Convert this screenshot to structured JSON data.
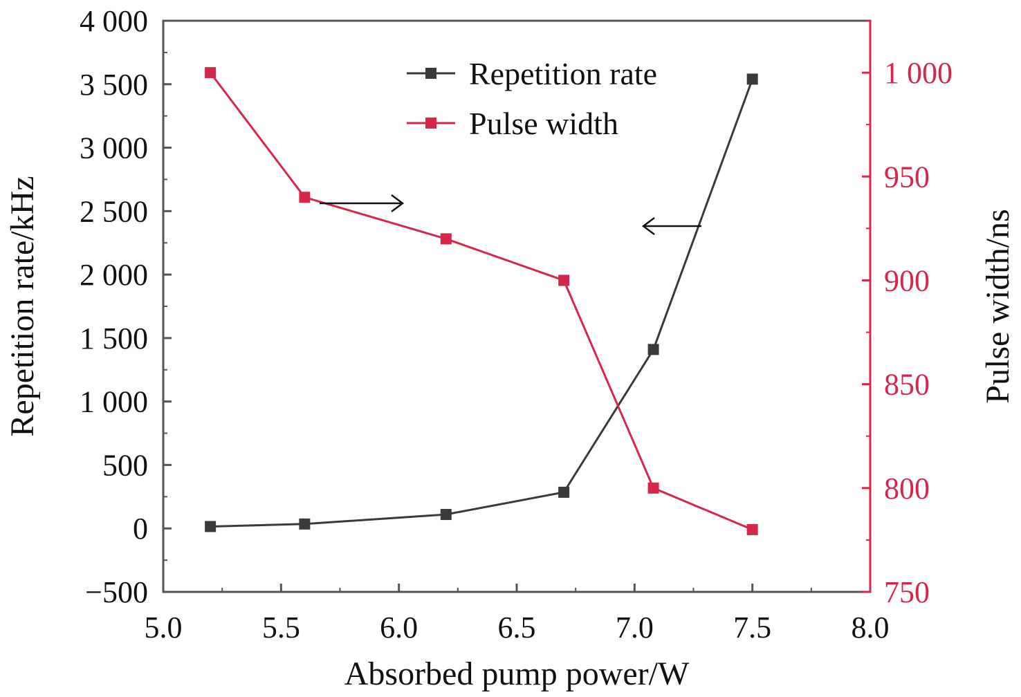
{
  "chart_data": {
    "type": "line",
    "title": "",
    "xlabel": "Absorbed pump power/W",
    "ylabel_left": "Repetition rate/kHz",
    "ylabel_right": "Pulse width/ns",
    "xlim": [
      5.0,
      8.0
    ],
    "ylim_left": [
      -500,
      4000
    ],
    "ylim_right": [
      750,
      1025
    ],
    "x_ticks": [
      "5.0",
      "5.5",
      "6.0",
      "6.5",
      "7.0",
      "7.5",
      "8.0"
    ],
    "y_left_ticks": [
      "−500",
      "0",
      "500",
      "1 000",
      "1 500",
      "2 000",
      "2 500",
      "3 000",
      "3 500",
      "4 000"
    ],
    "y_right_ticks": [
      "750",
      "800",
      "850",
      "900",
      "950",
      "1 000"
    ],
    "grid": false,
    "legend_position": "top-center",
    "series": [
      {
        "name": "Repetition rate",
        "axis": "left",
        "color": "#3a3a3a",
        "x": [
          5.2,
          5.6,
          6.2,
          6.7,
          7.08,
          7.5
        ],
        "values": [
          15,
          35,
          110,
          285,
          1410,
          3540
        ]
      },
      {
        "name": "Pulse width",
        "axis": "right",
        "color": "#d4284a",
        "x": [
          5.2,
          5.6,
          6.2,
          6.7,
          7.08,
          7.5
        ],
        "values": [
          1000,
          940,
          920,
          900,
          800,
          780
        ]
      }
    ],
    "annotations": [
      {
        "type": "arrow",
        "direction": "right",
        "points_to": "right-axis",
        "series": "Pulse width"
      },
      {
        "type": "arrow",
        "direction": "left",
        "points_to": "left-axis",
        "series": "Repetition rate"
      }
    ]
  }
}
